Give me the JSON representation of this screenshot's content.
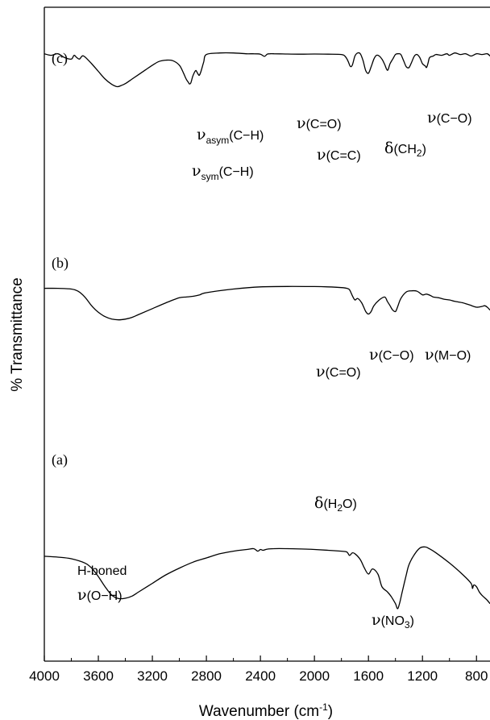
{
  "chart_data": {
    "type": "line",
    "xlabel": "Wavenumber (cm",
    "xlabel_sup": "-1",
    "xlabel_close": ")",
    "ylabel": "% Transmittance",
    "xlim": [
      4000,
      700
    ],
    "x_reversed": true,
    "ylim": [
      0,
      100
    ],
    "grid": false,
    "x_ticks": [
      4000,
      3600,
      3200,
      2800,
      2400,
      2000,
      1600,
      1200,
      800
    ],
    "series": [
      {
        "name": "(a)",
        "x": [
          4000,
          3900,
          3800,
          3700,
          3650,
          3600,
          3550,
          3500,
          3450,
          3400,
          3350,
          3300,
          3200,
          3100,
          3000,
          2900,
          2800,
          2700,
          2600,
          2500,
          2450,
          2420,
          2400,
          2380,
          2350,
          2300,
          2200,
          2100,
          2000,
          1900,
          1800,
          1760,
          1740,
          1720,
          1700,
          1660,
          1630,
          1600,
          1570,
          1530,
          1500,
          1460,
          1430,
          1400,
          1385,
          1370,
          1350,
          1320,
          1300,
          1260,
          1220,
          1180,
          1150,
          1100,
          1000,
          900,
          840,
          830,
          820,
          800,
          780,
          760,
          720,
          700
        ],
        "y": [
          31,
          30.5,
          29.5,
          27,
          24,
          19,
          13,
          8,
          6,
          6.2,
          7.5,
          10,
          15,
          20,
          24,
          27.5,
          30,
          32.5,
          34,
          35,
          35.5,
          34,
          35,
          34.5,
          35.2,
          35.5,
          35.5,
          35.3,
          35,
          34.5,
          34,
          33.5,
          31.5,
          33,
          32.5,
          29,
          24,
          20.5,
          23.5,
          20.5,
          13,
          10,
          7,
          3,
          0,
          3,
          10,
          20,
          26,
          32,
          35.8,
          36.5,
          35.5,
          33,
          27,
          20,
          15,
          12,
          14,
          13,
          10,
          8,
          5,
          3
        ]
      },
      {
        "name": "(b)",
        "x": [
          4000,
          3900,
          3800,
          3750,
          3700,
          3650,
          3600,
          3550,
          3500,
          3450,
          3400,
          3350,
          3300,
          3200,
          3100,
          3000,
          2950,
          2900,
          2850,
          2800,
          2600,
          2400,
          2200,
          2000,
          1900,
          1800,
          1760,
          1740,
          1720,
          1700,
          1680,
          1650,
          1620,
          1600,
          1580,
          1560,
          1520,
          1480,
          1460,
          1440,
          1420,
          1400,
          1385,
          1360,
          1320,
          1280,
          1240,
          1200,
          1170,
          1140,
          1120,
          1080,
          1040,
          1000,
          960,
          900,
          850,
          800,
          760,
          740,
          720,
          700
        ],
        "y": [
          68,
          68,
          67.5,
          66,
          62,
          56,
          51.5,
          48.5,
          46.8,
          46.3,
          46.8,
          48,
          50,
          54,
          58,
          61.5,
          62,
          62.5,
          63.5,
          65,
          67.5,
          69,
          69.3,
          69.2,
          69,
          68.5,
          68,
          67,
          63,
          60,
          61,
          58,
          52,
          50.3,
          52,
          56,
          60,
          62,
          59,
          56,
          53,
          52,
          55,
          61,
          65.5,
          66.3,
          66,
          63.5,
          64,
          63,
          62,
          61.5,
          60.5,
          60,
          59,
          58,
          56.5,
          55,
          55.5,
          56,
          55,
          53
        ]
      },
      {
        "name": "(c)",
        "x": [
          4000,
          3950,
          3900,
          3850,
          3800,
          3780,
          3760,
          3740,
          3720,
          3700,
          3650,
          3600,
          3550,
          3500,
          3460,
          3430,
          3400,
          3350,
          3300,
          3250,
          3200,
          3150,
          3100,
          3050,
          3000,
          2970,
          2950,
          2935,
          2925,
          2915,
          2900,
          2880,
          2870,
          2860,
          2852,
          2840,
          2820,
          2800,
          2700,
          2600,
          2500,
          2450,
          2400,
          2370,
          2350,
          2330,
          2300,
          2200,
          2100,
          2000,
          1900,
          1800,
          1770,
          1750,
          1735,
          1720,
          1700,
          1680,
          1660,
          1640,
          1620,
          1600,
          1580,
          1560,
          1540,
          1520,
          1500,
          1480,
          1465,
          1455,
          1440,
          1420,
          1400,
          1380,
          1360,
          1340,
          1320,
          1300,
          1280,
          1260,
          1240,
          1220,
          1200,
          1180,
          1170,
          1160,
          1150,
          1140,
          1120,
          1100,
          1060,
          1020,
          1000,
          960,
          920,
          880,
          840,
          800,
          760,
          720,
          700
        ],
        "y": [
          96.5,
          95.5,
          96.5,
          94,
          93,
          95.5,
          94,
          93,
          95,
          94.5,
          90,
          85,
          80,
          76.5,
          75,
          75.8,
          77,
          80,
          83,
          86,
          89,
          91.5,
          92.3,
          92,
          89,
          84,
          80,
          78,
          76.8,
          77.5,
          82,
          85.5,
          84.5,
          83,
          82.5,
          85,
          91,
          96,
          97,
          97,
          96.5,
          96.5,
          96.2,
          94.8,
          96.2,
          96.5,
          96.5,
          96.3,
          96.2,
          96.3,
          96.2,
          96,
          94.5,
          91.5,
          88.3,
          89,
          95,
          97,
          96.5,
          92,
          85.5,
          83.8,
          88,
          93,
          95.5,
          95,
          93,
          89.5,
          86.3,
          86,
          90,
          93,
          96,
          96.5,
          96,
          92,
          88,
          87.5,
          91,
          95,
          96,
          94,
          90,
          88.5,
          87.5,
          90,
          93.5,
          94.5,
          95,
          96,
          95.5,
          96.5,
          95.5,
          97,
          96,
          96.5,
          95,
          96.5,
          96,
          96.5,
          95
        ]
      }
    ],
    "panel_labels": [
      "(a)",
      "(b)",
      "(c)"
    ],
    "annotations": {
      "a_oh_line1": "H-boned",
      "a_oh_sym": "ν",
      "a_oh_rest": "(O−H)",
      "a_h2o_sym": "δ",
      "a_h2o_pre": "(H",
      "a_h2o_sub": "2",
      "a_h2o_post": "O)",
      "a_no3_sym": "ν",
      "a_no3_pre": "(NO",
      "a_no3_sub": "3",
      "a_no3_post": ")",
      "b_co1_sym": "ν",
      "b_co1_rest": "(C=O)",
      "b_co2_sym": "ν",
      "b_co2_rest": "(C−O)",
      "b_mo_sym": "ν",
      "b_mo_rest": "(M−O)",
      "c_asym_sym": "ν",
      "c_asym_sub": "asym",
      "c_asym_rest": "(C−H)",
      "c_sym_sym": "ν",
      "c_sym_sub": "sym",
      "c_sym_rest": "(C−H)",
      "c_co_sym": "ν",
      "c_co_rest": "(C=O)",
      "c_cc_sym": "ν",
      "c_cc_rest": "(C=C)",
      "c_ch2_sym": "δ",
      "c_ch2_pre": "(CH",
      "c_ch2_sub": "2",
      "c_ch2_post": ")",
      "c_co2_sym": "ν",
      "c_co2_rest": "(C−O)"
    }
  }
}
